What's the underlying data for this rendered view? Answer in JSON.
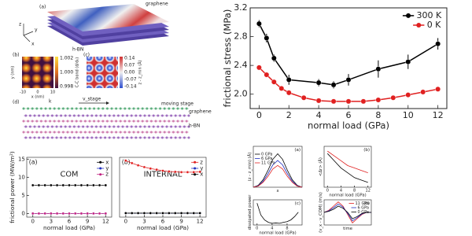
{
  "chart_data": [
    {
      "type": "line",
      "xlabel": "normal load (GPa)",
      "ylabel": "frictional stress (MPa)",
      "xlim": [
        -0.6,
        12.6
      ],
      "ylim": [
        1.8,
        3.2
      ],
      "xticks": [
        0,
        2,
        4,
        6,
        8,
        10,
        12
      ],
      "yticks": [
        {
          "value": 2,
          "label": "2.0"
        },
        2.4,
        2.8,
        3.2
      ],
      "markers": true,
      "legend": "upper right",
      "series": [
        {
          "name": "300 K",
          "color": "#000000",
          "x": [
            0,
            0.5,
            1,
            2,
            4,
            5,
            6,
            8,
            10,
            12
          ],
          "values": [
            2.98,
            2.78,
            2.5,
            2.2,
            2.16,
            2.13,
            2.2,
            2.35,
            2.45,
            2.7
          ],
          "errors": [
            0.05,
            0.06,
            0.05,
            0.07,
            0.05,
            0.05,
            0.08,
            0.12,
            0.1,
            0.08
          ]
        },
        {
          "name": "0 K",
          "color": "#e02020",
          "x": [
            0,
            0.5,
            1,
            1.5,
            2,
            3,
            4,
            5,
            6,
            7,
            8,
            9,
            10,
            11,
            12
          ],
          "values": [
            2.37,
            2.27,
            2.17,
            2.08,
            2.02,
            1.95,
            1.91,
            1.9,
            1.9,
            1.9,
            1.92,
            1.95,
            1.99,
            2.03,
            2.07
          ]
        }
      ]
    },
    {
      "type": "line",
      "label": "(a)",
      "annotation": "COM",
      "xlabel": "normal load (GPa)",
      "ylabel": "frictional power (MW/m²)",
      "xlim": [
        -1,
        13
      ],
      "ylim": [
        -1,
        15.5
      ],
      "xticks": [
        0,
        3,
        6,
        9,
        12
      ],
      "yticks": [
        0,
        5,
        10,
        15
      ],
      "markers": true,
      "legend": "upper right",
      "x": [
        0,
        1,
        2,
        3,
        4,
        5,
        6,
        7,
        8,
        9,
        10,
        11,
        12
      ],
      "series": [
        {
          "name": "x",
          "color": "#000000",
          "values": [
            7.8,
            7.8,
            7.8,
            7.8,
            7.8,
            7.8,
            7.8,
            7.8,
            7.8,
            7.8,
            7.8,
            7.8,
            7.8
          ]
        },
        {
          "name": "y",
          "color": "#2030c0",
          "values": [
            0,
            0,
            0,
            0,
            0,
            0,
            0,
            0,
            0,
            0,
            0,
            0,
            0
          ]
        },
        {
          "name": "z",
          "color": "#c02080",
          "values": [
            0,
            0,
            0,
            0,
            0,
            0,
            0,
            0,
            0,
            0,
            0,
            0,
            0
          ]
        }
      ]
    },
    {
      "type": "line",
      "label": "(b)",
      "annotation": "INTERNAL",
      "xlabel": "normal load (GPa)",
      "xlim": [
        -1,
        13
      ],
      "ylim": [
        -1,
        15.5
      ],
      "xticks": [
        0,
        3,
        6,
        9,
        12
      ],
      "markers": true,
      "legend": "upper right",
      "x": [
        0,
        1,
        2,
        3,
        4,
        5,
        6,
        7,
        8,
        9,
        10,
        11,
        12
      ],
      "series": [
        {
          "name": "z",
          "color": "#e02020",
          "values": [
            14.6,
            13.9,
            13.3,
            12.8,
            12.4,
            12.1,
            11.8,
            11.6,
            11.5,
            11.4,
            11.4,
            11.4,
            11.5
          ]
        },
        {
          "name": "y",
          "color": "#2030c0",
          "values": [
            0.1,
            0.1,
            0.1,
            0.1,
            0.1,
            0.1,
            0.1,
            0.1,
            0.1,
            0.1,
            0.1,
            0.1,
            0.1
          ]
        },
        {
          "name": "x",
          "color": "#000000",
          "values": [
            0.1,
            0.1,
            0.1,
            0.1,
            0.1,
            0.1,
            0.1,
            0.1,
            0.1,
            0.1,
            0.1,
            0.1,
            0.1
          ]
        }
      ]
    },
    {
      "type": "line",
      "label": "(a)",
      "xlabel": "x",
      "ylabel": "(z - z_min) (Å)",
      "xlim": [
        0,
        10
      ],
      "ylim": [
        0,
        2.2
      ],
      "legend": "upper left",
      "x": [
        0,
        1,
        2,
        3,
        4,
        5,
        6,
        7,
        8,
        9,
        10
      ],
      "series": [
        {
          "name": "0 GPa",
          "color": "#000000",
          "values": [
            0,
            0.1,
            0.4,
            0.9,
            1.5,
            1.8,
            1.5,
            0.9,
            0.4,
            0.1,
            0
          ]
        },
        {
          "name": "6 GPa",
          "color": "#2030c0",
          "values": [
            0,
            0.08,
            0.32,
            0.72,
            1.2,
            1.44,
            1.2,
            0.72,
            0.32,
            0.08,
            0
          ]
        },
        {
          "name": "11 GPa",
          "color": "#e02020",
          "values": [
            0,
            0.06,
            0.26,
            0.58,
            0.98,
            1.17,
            0.98,
            0.58,
            0.26,
            0.06,
            0
          ]
        }
      ]
    },
    {
      "type": "line",
      "label": "(b)",
      "xlabel": "normal load (GPa)",
      "ylabel": "<Δr> (Å)",
      "xlim": [
        -1,
        13
      ],
      "ylim": [
        0,
        0.17
      ],
      "xticks": [
        0,
        4,
        8,
        12
      ],
      "x": [
        0,
        2,
        4,
        6,
        8,
        10,
        12
      ],
      "series": [
        {
          "color": "#000000",
          "values": [
            0.14,
            0.11,
            0.08,
            0.06,
            0.04,
            0.03,
            0.02
          ]
        },
        {
          "color": "#e02020",
          "values": [
            0.15,
            0.13,
            0.11,
            0.09,
            0.08,
            0.07,
            0.06
          ]
        }
      ]
    },
    {
      "type": "line",
      "label": "(c)",
      "xlabel": "normal load (GPa)",
      "ylabel": "dissipated power",
      "xlim": [
        -1,
        12
      ],
      "ylim": [
        3,
        10.5
      ],
      "xticks": [
        0,
        4,
        8
      ],
      "x": [
        0,
        1,
        2,
        3,
        4,
        5,
        6,
        7,
        8,
        9,
        10,
        11
      ],
      "series": [
        {
          "color": "#000000",
          "values": [
            9.5,
            6,
            4.5,
            3.8,
            3.5,
            3.6,
            3.5,
            3.8,
            4,
            4.5,
            5.5,
            6.8
          ]
        }
      ]
    },
    {
      "type": "line",
      "label": "(d)",
      "xlabel": "time",
      "ylabel": "(v_x - v_COM) (m/s)",
      "xlim": [
        0,
        10
      ],
      "ylim": [
        -1.2,
        1.2
      ],
      "legend": "upper right",
      "x": [
        0,
        1,
        2,
        3,
        4,
        5,
        6,
        7,
        8,
        9,
        10
      ],
      "series": [
        {
          "name": "11 GPa",
          "color": "#e02020",
          "values": [
            0,
            0.2,
            0.6,
            1,
            0.6,
            -0.2,
            -1,
            -0.6,
            -0.2,
            0,
            0
          ]
        },
        {
          "name": "6 GPa",
          "color": "#2030c0",
          "values": [
            0,
            0.15,
            0.45,
            0.8,
            0.5,
            -0.1,
            -0.8,
            -0.5,
            -0.15,
            0,
            0
          ]
        },
        {
          "name": "0 GPa",
          "color": "#000000",
          "values": [
            0,
            0.1,
            0.3,
            0.6,
            0.4,
            0,
            -0.6,
            -0.4,
            -0.1,
            0,
            0
          ]
        }
      ]
    }
  ],
  "illustration": {
    "a_label": "(a)",
    "graphene": "graphene",
    "hbn": "h-BN",
    "ax_z": "z",
    "ax_y": "y",
    "ax_x": "x",
    "b_label": "(b)",
    "c_label": "(c)",
    "b_cbar": [
      "1.002",
      "1.000",
      "0.998"
    ],
    "b_cbar_title": "C-C bond (d/d₀)",
    "c_cbar": [
      "0.14",
      "0.07",
      "0.00",
      "-0.07",
      "-0.14"
    ],
    "c_cbar_title": "z - z_min (Å)",
    "x_axis": "x (nm)",
    "y_axis": "y (nm)",
    "ticks": [
      "-10",
      "0",
      "10"
    ],
    "d_label": "(d)",
    "stage": "moving stage",
    "vstage": "v_stage",
    "k": "k",
    "graphene2": "graphene",
    "hbn2": "h-BN"
  }
}
